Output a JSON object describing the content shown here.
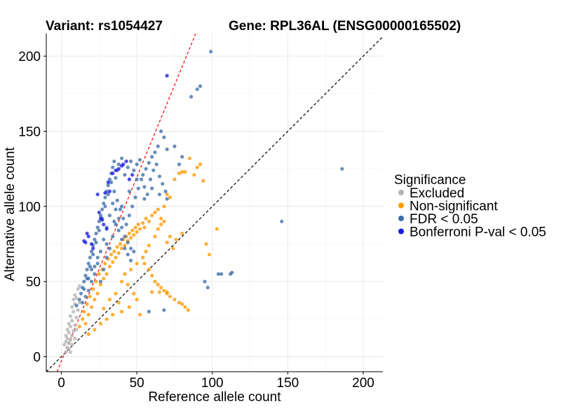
{
  "chart_data": {
    "type": "scatter",
    "title_left": "Variant: rs1054427",
    "title_right": "Gene: RPL36AL (ENSG00000165502)",
    "xlabel": "Reference allele count",
    "ylabel": "Alternative allele count",
    "xlim": [
      -10,
      213
    ],
    "ylim": [
      -10,
      215
    ],
    "xticks": [
      0,
      50,
      100,
      150,
      200
    ],
    "yticks": [
      0,
      50,
      100,
      150,
      200
    ],
    "grid": true,
    "legend": {
      "title": "Significance",
      "position": "right",
      "entries": [
        {
          "key": "excluded",
          "label": "Excluded",
          "color": "#b3b3b3"
        },
        {
          "key": "nonsig",
          "label": "Non-significant",
          "color": "#ff9900"
        },
        {
          "key": "fdr",
          "label": "FDR < 0.05",
          "color": "#3c6ea8"
        },
        {
          "key": "bonf",
          "label": "Bonferroni P-val < 0.05",
          "color": "#1a1ae0"
        }
      ]
    },
    "reference_lines": [
      {
        "name": "diagonal",
        "slope": 1,
        "intercept": 0,
        "color": "#000000",
        "style": "dashed"
      },
      {
        "name": "fit",
        "slope": 2.45,
        "intercept": -3,
        "color": "#ff0000",
        "style": "dashed"
      }
    ],
    "series": [
      {
        "name": "Excluded",
        "color": "#b3b3b3",
        "points": [
          [
            2,
            8
          ],
          [
            3,
            10
          ],
          [
            3,
            14
          ],
          [
            4,
            6
          ],
          [
            4,
            12
          ],
          [
            4,
            18
          ],
          [
            5,
            9
          ],
          [
            5,
            16
          ],
          [
            5,
            22
          ],
          [
            6,
            11
          ],
          [
            6,
            20
          ],
          [
            6,
            27
          ],
          [
            7,
            14
          ],
          [
            7,
            24
          ],
          [
            7,
            33
          ],
          [
            8,
            17
          ],
          [
            8,
            30
          ],
          [
            8,
            38
          ],
          [
            9,
            21
          ],
          [
            9,
            35
          ],
          [
            9,
            41
          ],
          [
            10,
            26
          ],
          [
            10,
            39
          ],
          [
            11,
            31
          ],
          [
            11,
            45
          ],
          [
            12,
            36
          ],
          [
            12,
            47
          ],
          [
            3,
            3
          ],
          [
            5,
            5
          ],
          [
            7,
            8
          ],
          [
            6,
            3
          ],
          [
            9,
            12
          ],
          [
            10,
            18
          ]
        ]
      },
      {
        "name": "Non-significant",
        "color": "#ff9900",
        "points": [
          [
            12,
            20
          ],
          [
            14,
            25
          ],
          [
            15,
            30
          ],
          [
            16,
            22
          ],
          [
            17,
            35
          ],
          [
            18,
            28
          ],
          [
            19,
            40
          ],
          [
            20,
            33
          ],
          [
            21,
            45
          ],
          [
            22,
            38
          ],
          [
            23,
            50
          ],
          [
            24,
            42
          ],
          [
            25,
            55
          ],
          [
            26,
            48
          ],
          [
            27,
            58
          ],
          [
            28,
            52
          ],
          [
            29,
            62
          ],
          [
            30,
            55
          ],
          [
            31,
            65
          ],
          [
            32,
            60
          ],
          [
            33,
            68
          ],
          [
            34,
            63
          ],
          [
            35,
            70
          ],
          [
            36,
            66
          ],
          [
            37,
            73
          ],
          [
            38,
            69
          ],
          [
            39,
            75
          ],
          [
            40,
            72
          ],
          [
            41,
            78
          ],
          [
            42,
            74
          ],
          [
            43,
            80
          ],
          [
            44,
            77
          ],
          [
            45,
            82
          ],
          [
            46,
            79
          ],
          [
            47,
            84
          ],
          [
            48,
            81
          ],
          [
            49,
            86
          ],
          [
            50,
            83
          ],
          [
            51,
            88
          ],
          [
            52,
            85
          ],
          [
            54,
            89
          ],
          [
            55,
            86
          ],
          [
            56,
            92
          ],
          [
            58,
            90
          ],
          [
            60,
            94
          ],
          [
            62,
            96
          ],
          [
            64,
            98
          ],
          [
            66,
            92
          ],
          [
            68,
            100
          ],
          [
            70,
            108
          ],
          [
            72,
            106
          ],
          [
            75,
            118
          ],
          [
            78,
            122
          ],
          [
            80,
            123
          ],
          [
            82,
            123
          ],
          [
            85,
            132
          ],
          [
            88,
            121
          ],
          [
            90,
            126
          ],
          [
            92,
            128
          ],
          [
            94,
            117
          ],
          [
            55,
            62
          ],
          [
            58,
            58
          ],
          [
            60,
            54
          ],
          [
            62,
            50
          ],
          [
            64,
            48
          ],
          [
            66,
            46
          ],
          [
            68,
            44
          ],
          [
            70,
            42
          ],
          [
            72,
            40
          ],
          [
            75,
            38
          ],
          [
            78,
            36
          ],
          [
            80,
            35
          ],
          [
            82,
            33
          ],
          [
            84,
            31
          ],
          [
            60,
            43
          ],
          [
            65,
            43
          ],
          [
            70,
            43
          ],
          [
            50,
            38
          ],
          [
            45,
            33
          ],
          [
            40,
            30
          ],
          [
            52,
            28
          ],
          [
            48,
            42
          ],
          [
            44,
            48
          ],
          [
            38,
            36
          ],
          [
            34,
            28
          ],
          [
            30,
            25
          ],
          [
            26,
            22
          ],
          [
            22,
            18
          ],
          [
            18,
            15
          ],
          [
            28,
            32
          ],
          [
            32,
            38
          ],
          [
            36,
            42
          ],
          [
            40,
            50
          ],
          [
            42,
            55
          ],
          [
            46,
            58
          ],
          [
            50,
            62
          ],
          [
            54,
            66
          ],
          [
            56,
            70
          ],
          [
            58,
            74
          ],
          [
            62,
            80
          ],
          [
            64,
            85
          ],
          [
            66,
            88
          ],
          [
            68,
            90
          ],
          [
            70,
            76
          ],
          [
            72,
            80
          ],
          [
            74,
            72
          ],
          [
            76,
            78
          ],
          [
            80,
            82
          ],
          [
            98,
            68
          ],
          [
            103,
            85
          ],
          [
            96,
            75
          ]
        ]
      },
      {
        "name": "FDR < 0.05",
        "color": "#3c6ea8",
        "points": [
          [
            10,
            34
          ],
          [
            12,
            38
          ],
          [
            13,
            42
          ],
          [
            14,
            46
          ],
          [
            15,
            50
          ],
          [
            16,
            54
          ],
          [
            17,
            58
          ],
          [
            18,
            62
          ],
          [
            19,
            66
          ],
          [
            20,
            70
          ],
          [
            21,
            74
          ],
          [
            22,
            78
          ],
          [
            23,
            82
          ],
          [
            24,
            86
          ],
          [
            25,
            90
          ],
          [
            26,
            94
          ],
          [
            27,
            98
          ],
          [
            28,
            102
          ],
          [
            29,
            106
          ],
          [
            30,
            110
          ],
          [
            31,
            114
          ],
          [
            32,
            118
          ],
          [
            33,
            122
          ],
          [
            34,
            126
          ],
          [
            35,
            130
          ],
          [
            36,
            119
          ],
          [
            37,
            124
          ],
          [
            38,
            128
          ],
          [
            40,
            132
          ],
          [
            42,
            121
          ],
          [
            44,
            126
          ],
          [
            46,
            130
          ],
          [
            48,
            124
          ],
          [
            50,
            128
          ],
          [
            52,
            131
          ],
          [
            54,
            121
          ],
          [
            56,
            125
          ],
          [
            58,
            129
          ],
          [
            60,
            133
          ],
          [
            62,
            136
          ],
          [
            64,
            140
          ],
          [
            66,
            150
          ],
          [
            68,
            146
          ],
          [
            70,
            138
          ],
          [
            75,
            140
          ],
          [
            78,
            128
          ],
          [
            80,
            133
          ],
          [
            90,
            178
          ],
          [
            92,
            180
          ],
          [
            86,
            173
          ],
          [
            99,
            203
          ],
          [
            15,
            45
          ],
          [
            17,
            52
          ],
          [
            19,
            60
          ],
          [
            21,
            68
          ],
          [
            23,
            76
          ],
          [
            25,
            84
          ],
          [
            27,
            92
          ],
          [
            29,
            100
          ],
          [
            31,
            108
          ],
          [
            33,
            116
          ],
          [
            35,
            110
          ],
          [
            37,
            104
          ],
          [
            39,
            98
          ],
          [
            41,
            92
          ],
          [
            43,
            88
          ],
          [
            45,
            94
          ],
          [
            47,
            100
          ],
          [
            49,
            106
          ],
          [
            51,
            112
          ],
          [
            53,
            118
          ],
          [
            55,
            113
          ],
          [
            57,
            108
          ],
          [
            59,
            118
          ],
          [
            61,
            124
          ],
          [
            63,
            128
          ],
          [
            65,
            120
          ],
          [
            67,
            115
          ],
          [
            69,
            110
          ],
          [
            22,
            55
          ],
          [
            24,
            62
          ],
          [
            26,
            70
          ],
          [
            28,
            78
          ],
          [
            30,
            86
          ],
          [
            32,
            94
          ],
          [
            34,
            102
          ],
          [
            36,
            98
          ],
          [
            38,
            92
          ],
          [
            40,
            86
          ],
          [
            42,
            80
          ],
          [
            44,
            76
          ],
          [
            46,
            72
          ],
          [
            48,
            70
          ],
          [
            26,
            50
          ],
          [
            28,
            58
          ],
          [
            30,
            66
          ],
          [
            32,
            72
          ],
          [
            34,
            80
          ],
          [
            36,
            88
          ],
          [
            38,
            84
          ],
          [
            40,
            78
          ],
          [
            42,
            72
          ],
          [
            44,
            68
          ],
          [
            46,
            64
          ],
          [
            18,
            44
          ],
          [
            20,
            50
          ],
          [
            22,
            60
          ],
          [
            24,
            66
          ],
          [
            20,
            58
          ],
          [
            18,
            52
          ],
          [
            16,
            40
          ],
          [
            14,
            36
          ],
          [
            30,
            75
          ],
          [
            35,
            90
          ],
          [
            40,
            100
          ],
          [
            45,
            110
          ],
          [
            50,
            118
          ],
          [
            55,
            105
          ],
          [
            60,
            112
          ],
          [
            65,
            108
          ],
          [
            70,
            105
          ],
          [
            186,
            125
          ],
          [
            146,
            90
          ],
          [
            104,
            55
          ],
          [
            106,
            55
          ],
          [
            112,
            55
          ],
          [
            113,
            56
          ],
          [
            95,
            50
          ],
          [
            97,
            46
          ],
          [
            68,
            31
          ],
          [
            58,
            30
          ]
        ]
      },
      {
        "name": "Bonferroni P-val < 0.05",
        "color": "#1a1ae0",
        "points": [
          [
            70,
            187
          ],
          [
            24,
            108
          ],
          [
            25,
            96
          ],
          [
            26,
            92
          ],
          [
            27,
            91
          ],
          [
            17,
            82
          ],
          [
            18,
            80
          ],
          [
            20,
            75
          ],
          [
            21,
            72
          ],
          [
            15,
            77
          ],
          [
            16,
            76
          ],
          [
            29,
            109
          ],
          [
            31,
            116
          ],
          [
            32,
            110
          ],
          [
            34,
            122
          ],
          [
            36,
            124
          ],
          [
            38,
            125
          ],
          [
            40,
            127
          ],
          [
            41,
            128
          ],
          [
            43,
            130
          ],
          [
            45,
            118
          ],
          [
            47,
            121
          ],
          [
            28,
            88
          ],
          [
            30,
            85
          ]
        ]
      }
    ]
  }
}
